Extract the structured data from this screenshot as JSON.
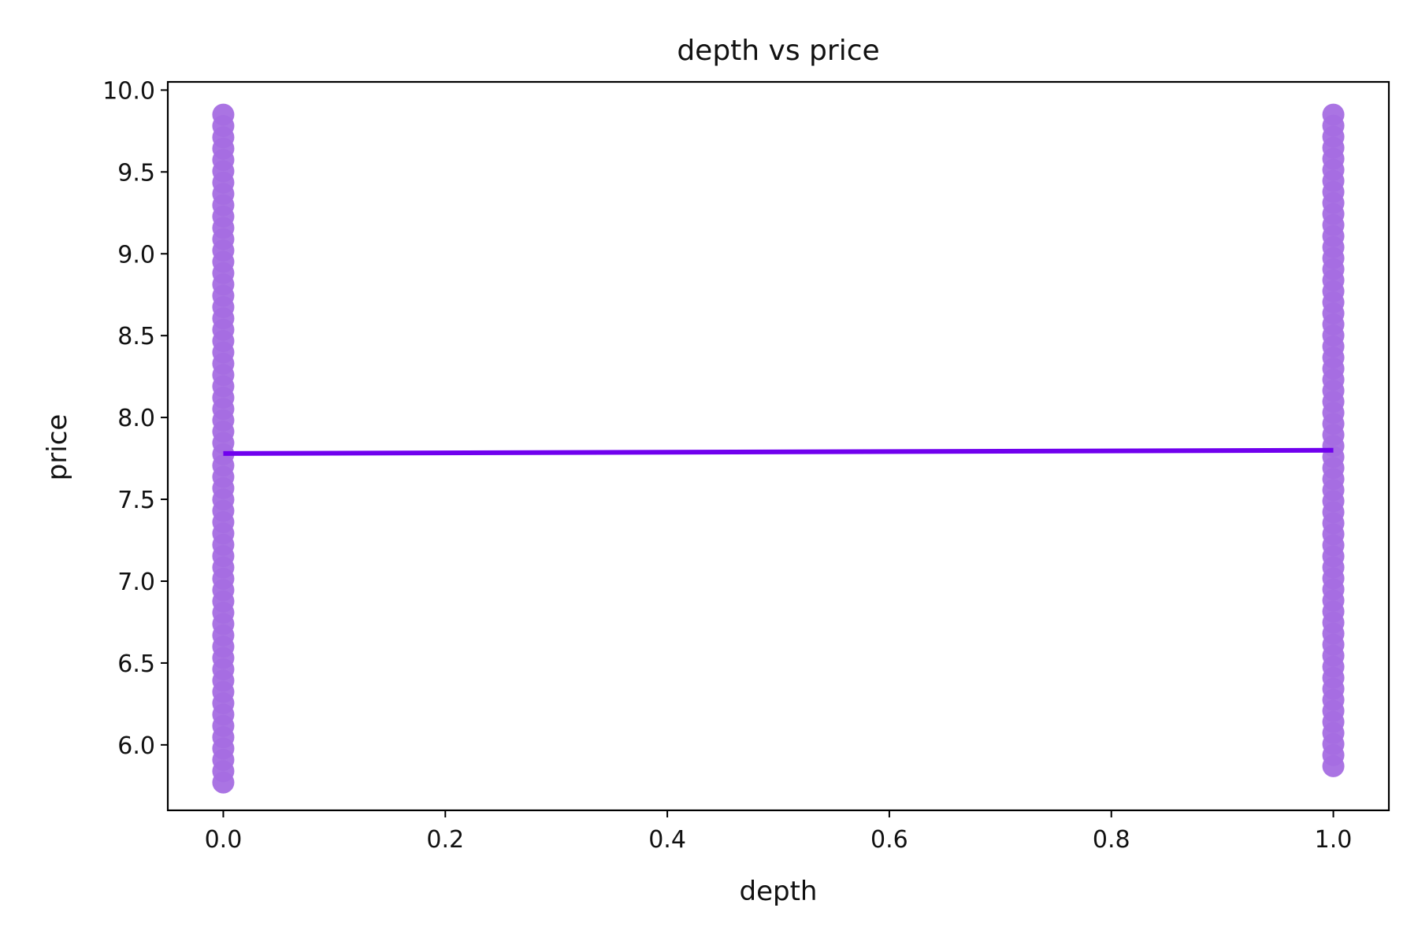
{
  "chart_data": {
    "type": "scatter",
    "title": "depth vs price",
    "xlabel": "depth",
    "ylabel": "price",
    "xlim": [
      -0.05,
      1.05
    ],
    "ylim": [
      5.6,
      10.05
    ],
    "x_ticks": [
      0.0,
      0.2,
      0.4,
      0.6,
      0.8,
      1.0
    ],
    "x_tick_labels": [
      "0.0",
      "0.2",
      "0.4",
      "0.6",
      "0.8",
      "1.0"
    ],
    "y_ticks": [
      6.0,
      6.5,
      7.0,
      7.5,
      8.0,
      8.5,
      9.0,
      9.5,
      10.0
    ],
    "y_tick_labels": [
      "6.0",
      "6.5",
      "7.0",
      "7.5",
      "8.0",
      "8.5",
      "9.0",
      "9.5",
      "10.0"
    ],
    "grid": false,
    "series": [
      {
        "kind": "scatter",
        "color": "#a56de2",
        "groups": [
          {
            "x": 0,
            "y_min": 5.77,
            "y_max": 9.85
          },
          {
            "x": 1,
            "y_min": 5.87,
            "y_max": 9.85
          }
        ]
      },
      {
        "kind": "line",
        "color": "#7000ee",
        "x": [
          0,
          1
        ],
        "y": [
          7.78,
          7.8
        ]
      }
    ]
  }
}
